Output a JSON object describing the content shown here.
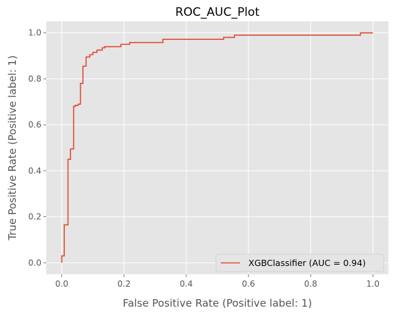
{
  "chart_data": {
    "type": "line",
    "title": "ROC_AUC_Plot",
    "xlabel": "False Positive Rate (Positive label: 1)",
    "ylabel": "True Positive Rate (Positive label: 1)",
    "xlim": [
      -0.05,
      1.05
    ],
    "ylim": [
      -0.05,
      1.05
    ],
    "xticks": [
      "0.0",
      "0.2",
      "0.4",
      "0.6",
      "0.8",
      "1.0"
    ],
    "yticks": [
      "0.0",
      "0.2",
      "0.4",
      "0.6",
      "0.8",
      "1.0"
    ],
    "grid": true,
    "legend_position": "lower-right",
    "series": [
      {
        "name": "XGBClassifier (AUC = 0.94)",
        "color": "#e24a33",
        "x": [
          0.0,
          0.0,
          0.008,
          0.008,
          0.02,
          0.02,
          0.028,
          0.028,
          0.038,
          0.038,
          0.043,
          0.043,
          0.053,
          0.053,
          0.06,
          0.06,
          0.068,
          0.068,
          0.078,
          0.078,
          0.09,
          0.09,
          0.1,
          0.1,
          0.113,
          0.113,
          0.13,
          0.13,
          0.138,
          0.138,
          0.19,
          0.19,
          0.218,
          0.218,
          0.325,
          0.325,
          0.52,
          0.52,
          0.555,
          0.555,
          0.96,
          0.96,
          1.0
        ],
        "y": [
          0.0,
          0.03,
          0.03,
          0.165,
          0.165,
          0.45,
          0.45,
          0.495,
          0.495,
          0.68,
          0.68,
          0.685,
          0.685,
          0.69,
          0.69,
          0.78,
          0.78,
          0.855,
          0.855,
          0.895,
          0.895,
          0.905,
          0.905,
          0.915,
          0.915,
          0.925,
          0.925,
          0.935,
          0.935,
          0.94,
          0.94,
          0.95,
          0.95,
          0.958,
          0.958,
          0.972,
          0.972,
          0.98,
          0.98,
          0.99,
          0.99,
          1.0,
          1.0
        ]
      }
    ]
  },
  "colors": {
    "plot_background": "#e5e5e5",
    "grid": "#ffffff",
    "text": "#555555"
  }
}
